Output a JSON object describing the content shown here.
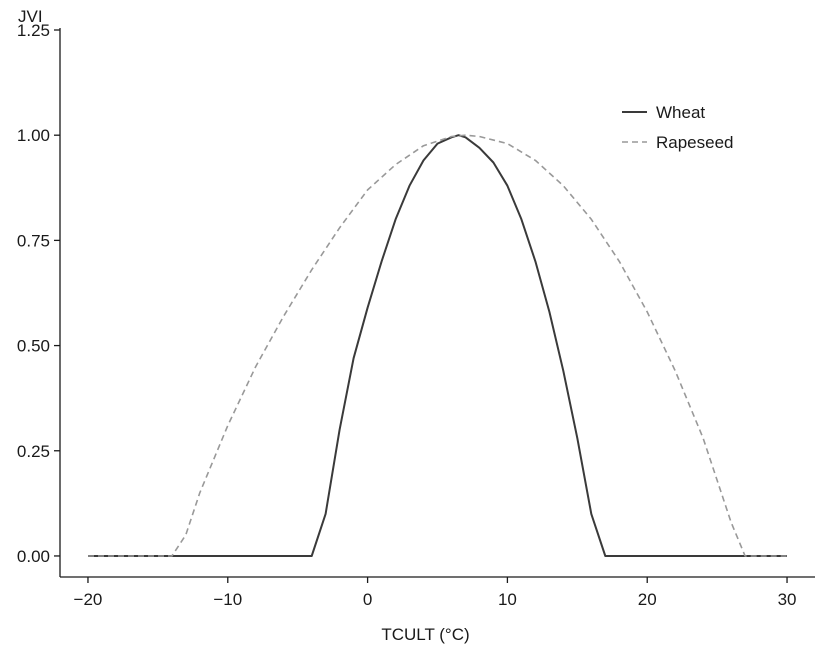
{
  "chart_data": {
    "type": "line",
    "title": "",
    "ylabel": "JVI",
    "xlabel": "TCULT (°C)",
    "xlim": [
      -22,
      32
    ],
    "ylim": [
      -0.05,
      1.25
    ],
    "x_ticks": [
      -20,
      -10,
      0,
      10,
      20,
      30
    ],
    "x_tick_labels": [
      "−20",
      "−10",
      "0",
      "10",
      "20",
      "30"
    ],
    "y_ticks": [
      0,
      0.25,
      0.5,
      0.75,
      1.0,
      1.25
    ],
    "y_tick_labels": [
      "0.00",
      "0.25",
      "0.50",
      "0.75",
      "1.00",
      "1.25"
    ],
    "grid": false,
    "legend_position": "top-right",
    "series": [
      {
        "name": "Wheat",
        "style": "solid",
        "color": "#3a3a3a",
        "x": [
          -20,
          -4,
          -3,
          -2,
          -1,
          0,
          1,
          2,
          3,
          4,
          5,
          6,
          6.5,
          7,
          8,
          9,
          10,
          11,
          12,
          13,
          14,
          15,
          16,
          17,
          30
        ],
        "y": [
          0,
          0,
          0.1,
          0.3,
          0.47,
          0.59,
          0.7,
          0.8,
          0.88,
          0.94,
          0.98,
          0.995,
          1.0,
          0.995,
          0.97,
          0.935,
          0.88,
          0.8,
          0.7,
          0.58,
          0.44,
          0.28,
          0.1,
          0,
          0
        ]
      },
      {
        "name": "Rapeseed",
        "style": "dashed",
        "color": "#999999",
        "x": [
          -20,
          -14,
          -13,
          -12,
          -10,
          -8,
          -6,
          -4,
          -2,
          0,
          2,
          4,
          6,
          7,
          8,
          10,
          12,
          14,
          16,
          18,
          20,
          22,
          24,
          26,
          27,
          30
        ],
        "y": [
          0,
          0,
          0.05,
          0.15,
          0.31,
          0.45,
          0.57,
          0.68,
          0.78,
          0.87,
          0.93,
          0.975,
          0.997,
          1.0,
          0.997,
          0.98,
          0.94,
          0.88,
          0.8,
          0.7,
          0.58,
          0.44,
          0.28,
          0.08,
          0,
          0
        ]
      }
    ]
  }
}
